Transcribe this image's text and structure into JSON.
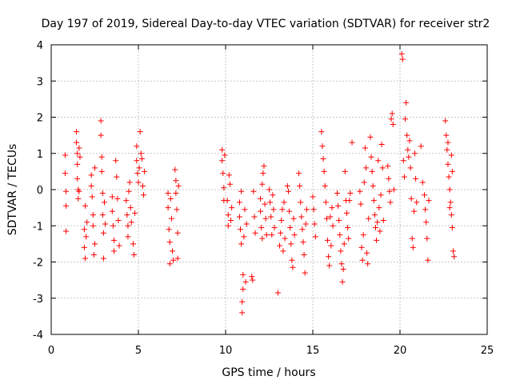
{
  "chart_data": {
    "type": "scatter",
    "title": "Day 197 of 2019, Sidereal Day-to-day VTEC variation (SDTVAR) for receiver str2",
    "xlabel": "GPS time / hours",
    "ylabel": "SDTVAR / TECUs",
    "xlim": [
      0,
      25
    ],
    "ylim": [
      -4,
      4
    ],
    "xticks": [
      "0",
      "5",
      "10",
      "15",
      "20",
      "25"
    ],
    "yticks": [
      "-4",
      "-3",
      "-2",
      "-1",
      "0",
      "1",
      "2",
      "3",
      "4"
    ],
    "grid": true,
    "marker": "plus",
    "color": "#ff0000",
    "series": [
      {
        "name": "SDTVAR",
        "points": [
          [
            0.8,
            0.95
          ],
          [
            0.8,
            0.45
          ],
          [
            0.85,
            -0.05
          ],
          [
            0.85,
            -0.45
          ],
          [
            0.85,
            -1.15
          ],
          [
            1.45,
            1.6
          ],
          [
            1.45,
            1.3
          ],
          [
            1.5,
            1.0
          ],
          [
            1.5,
            0.7
          ],
          [
            1.5,
            0.3
          ],
          [
            1.55,
            0.0
          ],
          [
            1.55,
            -0.25
          ],
          [
            1.6,
            -0.05
          ],
          [
            1.6,
            1.15
          ],
          [
            1.65,
            0.9
          ],
          [
            1.9,
            -1.1
          ],
          [
            1.9,
            -1.6
          ],
          [
            1.95,
            -1.9
          ],
          [
            1.95,
            -0.45
          ],
          [
            2.0,
            -1.3
          ],
          [
            2.05,
            -0.9
          ],
          [
            2.3,
            0.4
          ],
          [
            2.3,
            0.1
          ],
          [
            2.35,
            -0.2
          ],
          [
            2.4,
            -0.7
          ],
          [
            2.4,
            -1.0
          ],
          [
            2.45,
            -1.8
          ],
          [
            2.5,
            -1.5
          ],
          [
            2.5,
            0.6
          ],
          [
            2.85,
            1.9
          ],
          [
            2.85,
            1.5
          ],
          [
            2.9,
            0.9
          ],
          [
            2.9,
            0.5
          ],
          [
            2.95,
            -0.1
          ],
          [
            2.95,
            -0.7
          ],
          [
            3.0,
            -1.2
          ],
          [
            3.0,
            -1.9
          ],
          [
            3.05,
            -0.35
          ],
          [
            3.1,
            -0.95
          ],
          [
            3.5,
            -0.2
          ],
          [
            3.5,
            -0.6
          ],
          [
            3.55,
            -1.0
          ],
          [
            3.6,
            -1.4
          ],
          [
            3.6,
            -1.7
          ],
          [
            3.7,
            0.8
          ],
          [
            3.75,
            0.35
          ],
          [
            3.8,
            -0.25
          ],
          [
            3.85,
            -0.85
          ],
          [
            3.9,
            -1.55
          ],
          [
            4.3,
            -0.3
          ],
          [
            4.35,
            -0.7
          ],
          [
            4.4,
            -1.0
          ],
          [
            4.4,
            -1.3
          ],
          [
            4.45,
            -0.05
          ],
          [
            4.5,
            0.2
          ],
          [
            4.55,
            -0.5
          ],
          [
            4.6,
            -0.9
          ],
          [
            4.7,
            -1.5
          ],
          [
            4.75,
            -1.8
          ],
          [
            4.8,
            -0.65
          ],
          [
            4.9,
            1.2
          ],
          [
            4.9,
            0.8
          ],
          [
            4.95,
            0.45
          ],
          [
            5.0,
            0.2
          ],
          [
            5.05,
            0.6
          ],
          [
            5.1,
            1.6
          ],
          [
            5.15,
            1.0
          ],
          [
            5.2,
            0.85
          ],
          [
            5.25,
            0.1
          ],
          [
            5.3,
            -0.15
          ],
          [
            5.35,
            0.5
          ],
          [
            6.7,
            -0.1
          ],
          [
            6.7,
            -0.5
          ],
          [
            6.75,
            -1.1
          ],
          [
            6.8,
            -1.45
          ],
          [
            6.8,
            -2.05
          ],
          [
            6.85,
            -0.25
          ],
          [
            6.9,
            -0.8
          ],
          [
            6.95,
            -1.7
          ],
          [
            7.0,
            -1.95
          ],
          [
            7.1,
            0.55
          ],
          [
            7.15,
            0.25
          ],
          [
            7.15,
            -0.1
          ],
          [
            7.2,
            -0.55
          ],
          [
            7.25,
            -1.2
          ],
          [
            7.25,
            -1.9
          ],
          [
            7.3,
            0.1
          ],
          [
            9.8,
            1.1
          ],
          [
            9.8,
            0.8
          ],
          [
            9.85,
            0.45
          ],
          [
            9.9,
            0.05
          ],
          [
            9.9,
            -0.3
          ],
          [
            9.95,
            0.95
          ],
          [
            10.1,
            -0.3
          ],
          [
            10.15,
            -0.7
          ],
          [
            10.15,
            -1.0
          ],
          [
            10.2,
            0.4
          ],
          [
            10.25,
            0.15
          ],
          [
            10.3,
            -0.85
          ],
          [
            10.35,
            -0.5
          ],
          [
            10.8,
            -0.35
          ],
          [
            10.8,
            -0.75
          ],
          [
            10.85,
            -1.1
          ],
          [
            10.9,
            -1.5
          ],
          [
            10.9,
            -0.05
          ],
          [
            10.95,
            -3.1
          ],
          [
            10.95,
            -3.4
          ],
          [
            11.0,
            -2.35
          ],
          [
            11.0,
            -2.75
          ],
          [
            11.05,
            -1.3
          ],
          [
            11.1,
            -0.55
          ],
          [
            11.15,
            -2.55
          ],
          [
            11.2,
            -0.95
          ],
          [
            11.5,
            -2.4
          ],
          [
            11.55,
            -2.5
          ],
          [
            11.6,
            -0.05
          ],
          [
            11.65,
            -0.75
          ],
          [
            11.7,
            -1.2
          ],
          [
            12.0,
            -0.25
          ],
          [
            12.0,
            -0.6
          ],
          [
            12.05,
            -1.05
          ],
          [
            12.1,
            -1.35
          ],
          [
            12.1,
            0.15
          ],
          [
            12.15,
            0.45
          ],
          [
            12.2,
            0.65
          ],
          [
            12.25,
            -0.4
          ],
          [
            12.3,
            -0.8
          ],
          [
            12.35,
            -1.25
          ],
          [
            12.5,
            0.0
          ],
          [
            12.55,
            -0.35
          ],
          [
            12.6,
            -0.75
          ],
          [
            12.65,
            -1.25
          ],
          [
            12.7,
            -0.15
          ],
          [
            12.75,
            -0.55
          ],
          [
            12.8,
            -1.05
          ],
          [
            13.0,
            -2.85
          ],
          [
            13.1,
            -1.55
          ],
          [
            13.15,
            -1.2
          ],
          [
            13.2,
            -0.85
          ],
          [
            13.25,
            -0.55
          ],
          [
            13.3,
            -1.7
          ],
          [
            13.35,
            -0.35
          ],
          [
            13.4,
            -1.35
          ],
          [
            13.55,
            0.1
          ],
          [
            13.6,
            -0.05
          ],
          [
            13.65,
            -0.6
          ],
          [
            13.7,
            -1.05
          ],
          [
            13.75,
            -1.5
          ],
          [
            13.8,
            -1.95
          ],
          [
            13.85,
            -2.15
          ],
          [
            13.9,
            -0.8
          ],
          [
            13.95,
            -1.25
          ],
          [
            14.2,
            0.45
          ],
          [
            14.25,
            0.1
          ],
          [
            14.3,
            -0.35
          ],
          [
            14.35,
            -0.75
          ],
          [
            14.4,
            -1.1
          ],
          [
            14.45,
            -1.45
          ],
          [
            14.5,
            -1.8
          ],
          [
            14.55,
            -2.3
          ],
          [
            14.6,
            -0.95
          ],
          [
            14.65,
            -0.55
          ],
          [
            15.0,
            -0.2
          ],
          [
            15.05,
            -0.55
          ],
          [
            15.1,
            -0.95
          ],
          [
            15.15,
            -1.3
          ],
          [
            15.5,
            1.6
          ],
          [
            15.55,
            1.2
          ],
          [
            15.6,
            0.85
          ],
          [
            15.65,
            0.5
          ],
          [
            15.7,
            0.1
          ],
          [
            15.75,
            -0.35
          ],
          [
            15.8,
            -0.8
          ],
          [
            15.85,
            -1.4
          ],
          [
            15.9,
            -1.85
          ],
          [
            15.95,
            -2.1
          ],
          [
            16.0,
            -0.75
          ],
          [
            16.05,
            -1.55
          ],
          [
            16.1,
            -0.5
          ],
          [
            16.15,
            -1.0
          ],
          [
            16.4,
            -0.1
          ],
          [
            16.45,
            -0.45
          ],
          [
            16.5,
            -0.85
          ],
          [
            16.55,
            -1.25
          ],
          [
            16.6,
            -1.7
          ],
          [
            16.65,
            -2.05
          ],
          [
            16.7,
            -2.55
          ],
          [
            16.75,
            -2.2
          ],
          [
            16.8,
            -1.5
          ],
          [
            16.85,
            0.5
          ],
          [
            16.9,
            -0.3
          ],
          [
            16.95,
            -0.65
          ],
          [
            17.0,
            -1.05
          ],
          [
            17.05,
            -1.35
          ],
          [
            17.1,
            -0.3
          ],
          [
            17.15,
            -0.1
          ],
          [
            17.25,
            1.3
          ],
          [
            17.7,
            -0.05
          ],
          [
            17.75,
            -0.4
          ],
          [
            17.8,
            -1.6
          ],
          [
            17.85,
            -1.95
          ],
          [
            17.9,
            -1.25
          ],
          [
            17.95,
            0.2
          ],
          [
            18.0,
            1.15
          ],
          [
            18.05,
            0.6
          ],
          [
            18.1,
            -1.75
          ],
          [
            18.15,
            -2.05
          ],
          [
            18.2,
            -0.8
          ],
          [
            18.3,
            1.45
          ],
          [
            18.35,
            0.9
          ],
          [
            18.4,
            0.5
          ],
          [
            18.45,
            0.1
          ],
          [
            18.5,
            -0.3
          ],
          [
            18.55,
            -0.7
          ],
          [
            18.6,
            -1.05
          ],
          [
            18.65,
            -1.4
          ],
          [
            18.7,
            -0.9
          ],
          [
            18.75,
            0.8
          ],
          [
            18.8,
            -0.5
          ],
          [
            18.85,
            -1.15
          ],
          [
            18.9,
            -0.15
          ],
          [
            18.95,
            1.25
          ],
          [
            19.0,
            0.6
          ],
          [
            19.05,
            -0.85
          ],
          [
            19.3,
            0.65
          ],
          [
            19.35,
            0.3
          ],
          [
            19.4,
            -0.05
          ],
          [
            19.45,
            -0.35
          ],
          [
            19.5,
            1.95
          ],
          [
            19.55,
            2.1
          ],
          [
            19.6,
            1.8
          ],
          [
            19.65,
            0.0
          ],
          [
            20.1,
            3.75
          ],
          [
            20.15,
            3.6
          ],
          [
            20.2,
            0.8
          ],
          [
            20.25,
            0.35
          ],
          [
            20.3,
            1.95
          ],
          [
            20.35,
            2.4
          ],
          [
            20.4,
            1.5
          ],
          [
            20.45,
            1.1
          ],
          [
            20.5,
            0.9
          ],
          [
            20.55,
            1.35
          ],
          [
            20.6,
            0.6
          ],
          [
            20.65,
            -0.25
          ],
          [
            20.7,
            -1.35
          ],
          [
            20.75,
            -1.6
          ],
          [
            20.8,
            -0.6
          ],
          [
            20.85,
            1.0
          ],
          [
            20.9,
            0.3
          ],
          [
            20.95,
            -0.35
          ],
          [
            21.2,
            1.2
          ],
          [
            21.3,
            0.2
          ],
          [
            21.4,
            -0.15
          ],
          [
            21.45,
            -0.55
          ],
          [
            21.5,
            -0.9
          ],
          [
            21.55,
            -1.35
          ],
          [
            21.6,
            -1.95
          ],
          [
            21.65,
            -0.3
          ],
          [
            22.6,
            1.9
          ],
          [
            22.65,
            1.5
          ],
          [
            22.7,
            1.1
          ],
          [
            22.75,
            0.7
          ],
          [
            22.8,
            0.35
          ],
          [
            22.85,
            0.0
          ],
          [
            22.9,
            -0.35
          ],
          [
            22.95,
            -0.7
          ],
          [
            23.0,
            -1.05
          ],
          [
            23.05,
            -1.7
          ],
          [
            23.1,
            -1.85
          ],
          [
            22.75,
            1.3
          ],
          [
            22.85,
            -0.5
          ],
          [
            22.95,
            0.95
          ],
          [
            23.0,
            0.5
          ]
        ]
      }
    ]
  }
}
